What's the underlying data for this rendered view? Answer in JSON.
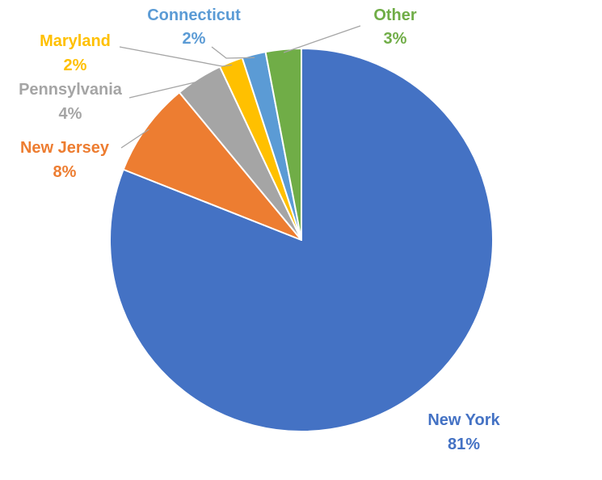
{
  "chart_data": {
    "type": "pie",
    "title": "",
    "slices": [
      {
        "name": "New York",
        "value": 81,
        "value_label": "81%",
        "color": "#4472C4"
      },
      {
        "name": "New Jersey",
        "value": 8,
        "value_label": "8%",
        "color": "#ED7D31"
      },
      {
        "name": "Pennsylvania",
        "value": 4,
        "value_label": "4%",
        "color": "#A5A5A5"
      },
      {
        "name": "Maryland",
        "value": 2,
        "value_label": "2%",
        "color": "#FFC000"
      },
      {
        "name": "Connecticut",
        "value": 2,
        "value_label": "2%",
        "color": "#5B9BD5"
      },
      {
        "name": "Other",
        "value": 3,
        "value_label": "3%",
        "color": "#70AD47"
      }
    ],
    "legend": "none",
    "labels": "outside-with-leader-lines"
  }
}
